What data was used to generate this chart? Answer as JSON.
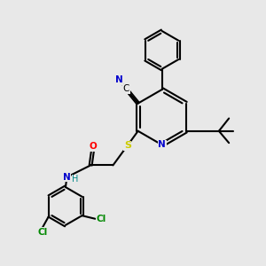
{
  "bg_color": "#e8e8e8",
  "bond_color": "#000000",
  "line_width": 1.5,
  "atom_colors": {
    "N": "#0000cc",
    "O": "#ff0000",
    "S": "#cccc00",
    "Cl": "#008800",
    "C": "#000000",
    "H": "#008888"
  },
  "figsize": [
    3.0,
    3.0
  ],
  "dpi": 100
}
